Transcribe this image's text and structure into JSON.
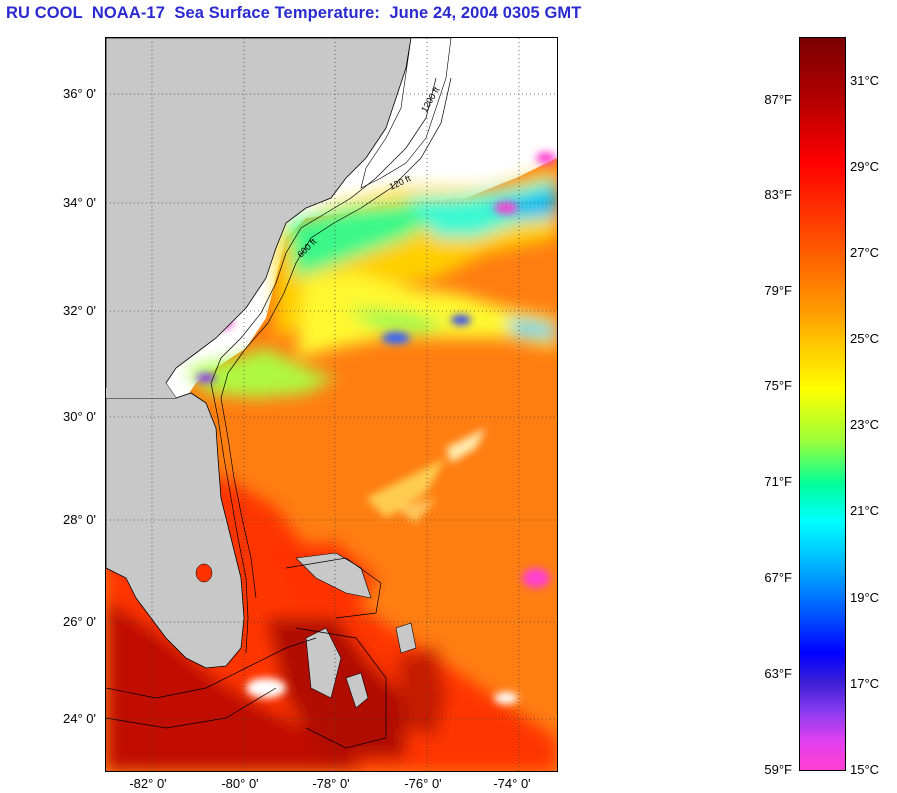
{
  "title": "RU COOL  NOAA-17  Sea Surface Temperature:  June 24, 2004 0305 GMT",
  "map": {
    "lat_labels": [
      "36° 0'",
      "34° 0'",
      "32° 0'",
      "30° 0'",
      "28° 0'",
      "26° 0'",
      "24° 0'"
    ],
    "lon_labels": [
      "-82° 0'",
      "-80° 0'",
      "-78° 0'",
      "-76° 0'",
      "-74° 0'"
    ],
    "contour_labels": [
      "120 ft",
      "600 ft",
      "1200 ft"
    ]
  },
  "colorbar": {
    "fahrenheit_ticks": [
      "87°F",
      "83°F",
      "79°F",
      "75°F",
      "71°F",
      "67°F",
      "63°F",
      "59°F"
    ],
    "celsius_ticks": [
      "31°C",
      "29°C",
      "27°C",
      "25°C",
      "23°C",
      "21°C",
      "19°C",
      "17°C",
      "15°C"
    ],
    "colors": {
      "warmest": "#7a0000",
      "warm": "#ff5a00",
      "mid": "#ffff00",
      "cool": "#00ffff",
      "coldest": "#ff40d0"
    }
  },
  "colors": {
    "land": "#c8c8c8",
    "no_data": "#ffffff",
    "ocean": "#ff7a10",
    "title": "#2a2ad0"
  }
}
